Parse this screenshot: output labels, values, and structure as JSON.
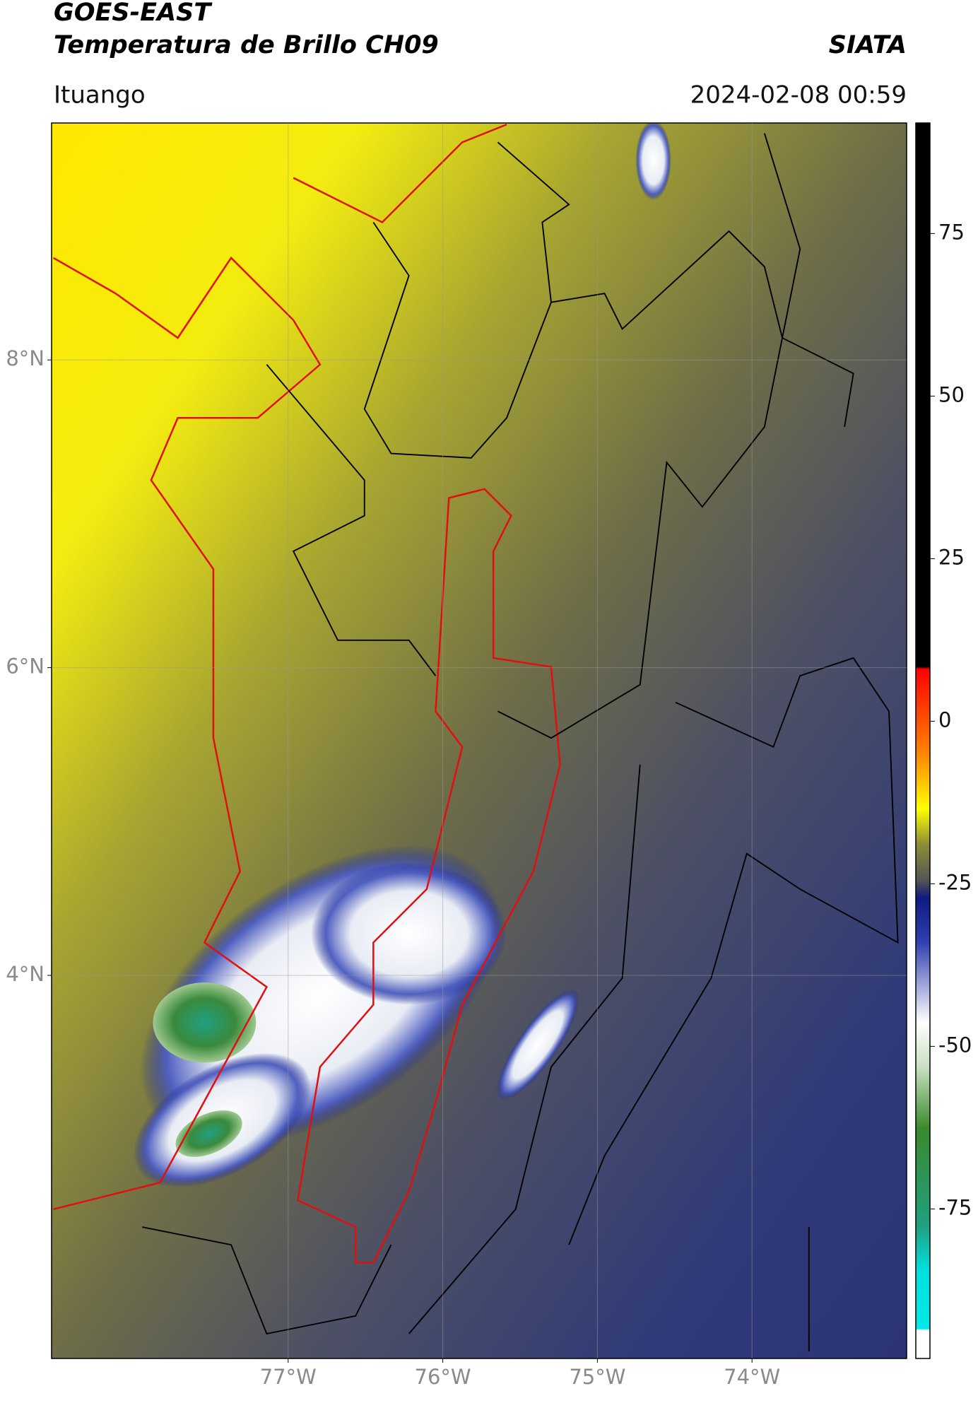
{
  "header": {
    "title": "GOES-EAST",
    "subtitle": "Temperatura de Brillo CH09",
    "brand": "SIATA",
    "region": "Ituango",
    "timestamp": "2024-02-08 00:59"
  },
  "map": {
    "xlim": [
      -78.53,
      -73.0
    ],
    "ylim": [
      1.51,
      9.54
    ],
    "xticks": [
      {
        "value": -77,
        "label": "77°W"
      },
      {
        "value": -76,
        "label": "76°W"
      },
      {
        "value": -75,
        "label": "75°W"
      },
      {
        "value": -74,
        "label": "74°W"
      }
    ],
    "yticks": [
      {
        "value": 8,
        "label": "8°N"
      },
      {
        "value": 6,
        "label": "6°N"
      },
      {
        "value": 4,
        "label": "4°N"
      }
    ],
    "grid": true
  },
  "colorbar": {
    "ylim": [
      -98,
      92
    ],
    "yticks": [
      75,
      50,
      25,
      0,
      -25,
      -50,
      -75
    ]
  }
}
